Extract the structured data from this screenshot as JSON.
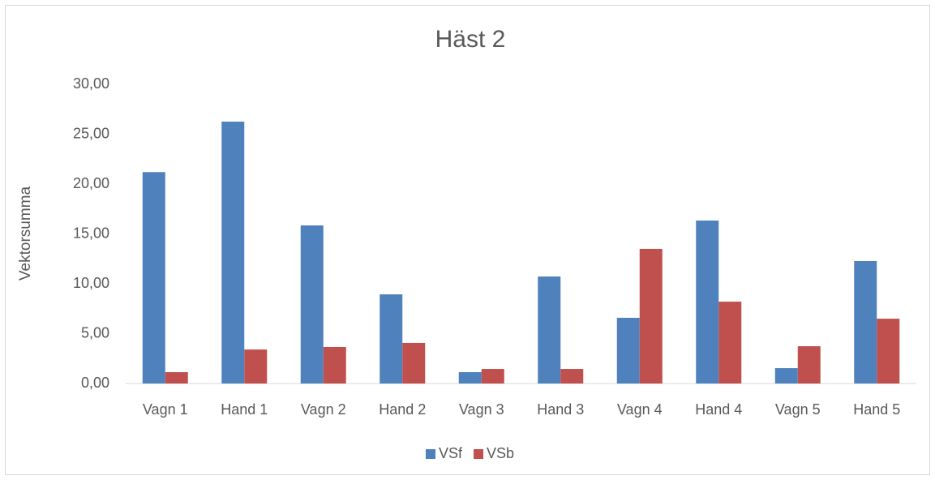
{
  "chart_data": {
    "type": "bar",
    "title": "Häst 2",
    "y_label": "Vektorsumma",
    "categories": [
      "Vagn 1",
      "Hand 1",
      "Vagn 2",
      "Hand 2",
      "Vagn 3",
      "Hand 3",
      "Vagn 4",
      "Hand 4",
      "Vagn 5",
      "Hand 5"
    ],
    "series": [
      {
        "name": "VSf",
        "color": "#4f81bd",
        "values": [
          21.2,
          26.26,
          15.85,
          8.94,
          1.14,
          10.73,
          6.59,
          16.34,
          1.54,
          12.28
        ]
      },
      {
        "name": "VSb",
        "color": "#c0504d",
        "values": [
          1.14,
          3.41,
          3.66,
          4.07,
          1.46,
          1.46,
          13.5,
          8.21,
          3.74,
          6.5
        ]
      }
    ],
    "ylim": [
      0,
      30
    ],
    "yticks": [
      {
        "value": 0,
        "label": "0,00"
      },
      {
        "value": 5,
        "label": "5,00"
      },
      {
        "value": 10,
        "label": "10,00"
      },
      {
        "value": 15,
        "label": "15,00"
      },
      {
        "value": 20,
        "label": "20,00"
      },
      {
        "value": 25,
        "label": "25,00"
      },
      {
        "value": 30,
        "label": "30,00"
      }
    ],
    "grid": false,
    "legend": "bottom"
  }
}
